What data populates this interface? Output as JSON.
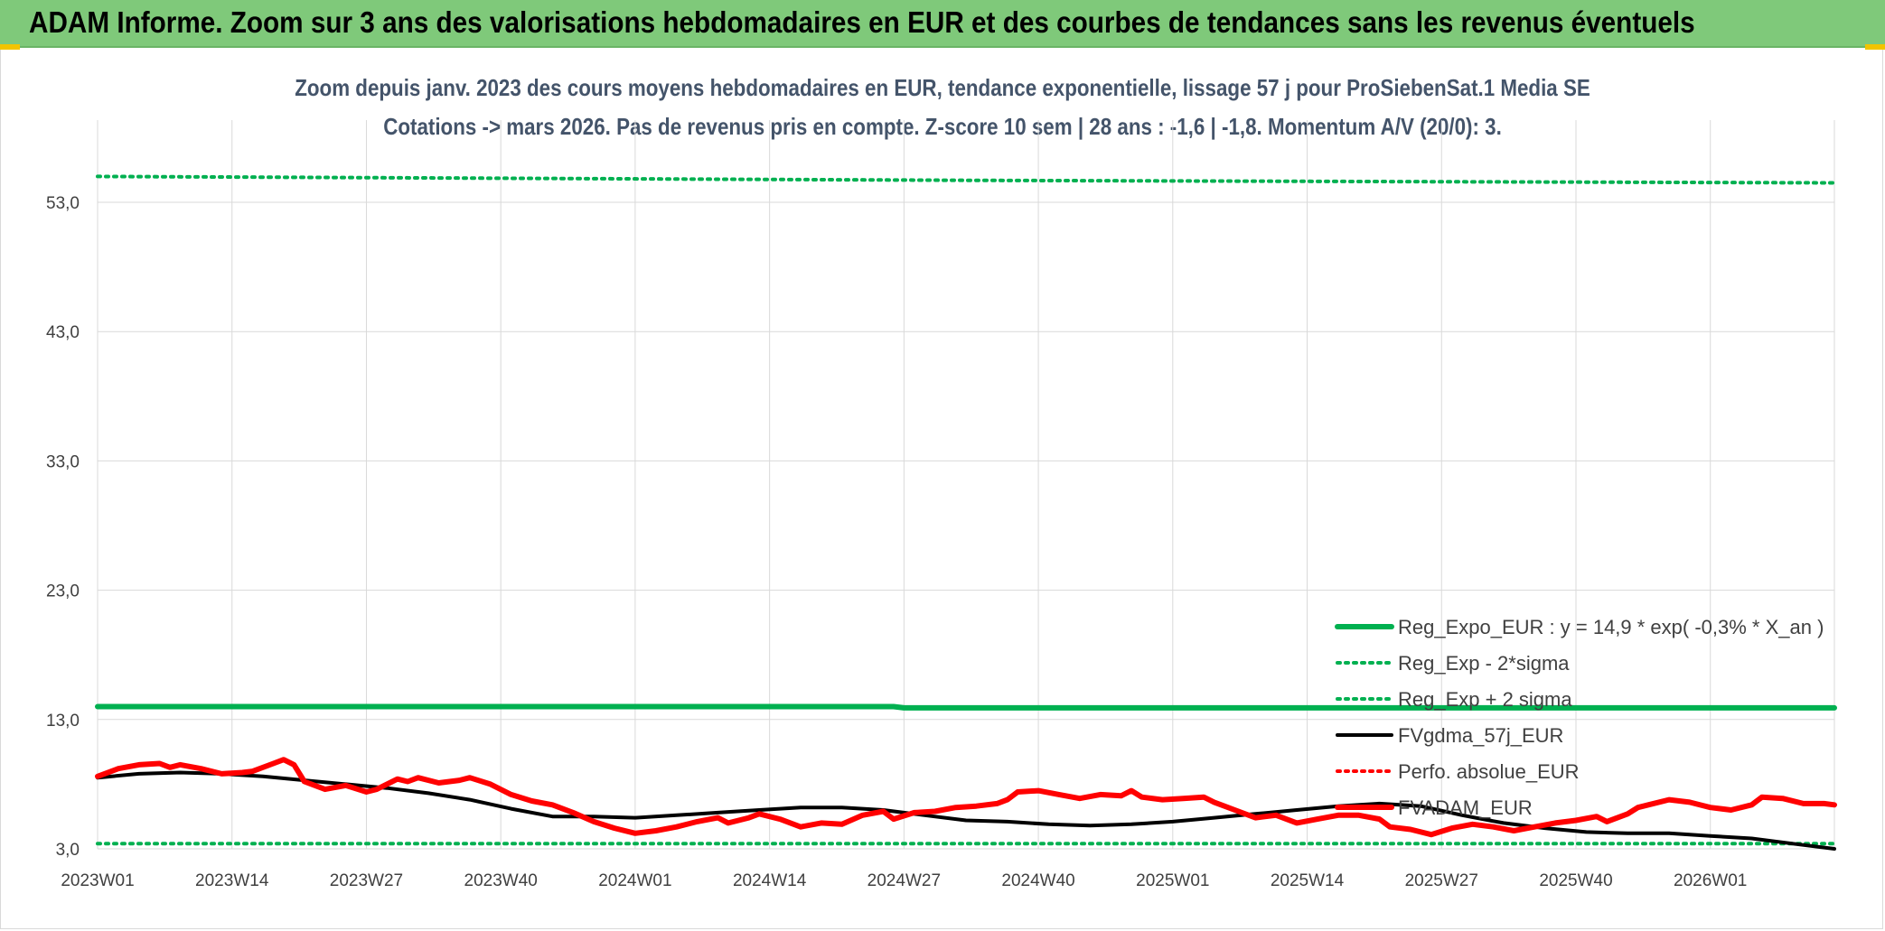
{
  "banner": {
    "title": "ADAM Informe. Zoom sur 3 ans des valorisations hebdomadaires en EUR et des courbes de tendances sans les revenus éventuels"
  },
  "chart_data": {
    "type": "line",
    "title": "Zoom depuis janv. 2023 des cours moyens hebdomadaires en EUR, tendance exponentielle, lissage 57 j pour ProSiebenSat.1 Media SE",
    "subtitle": "Cotations -> mars 2026. Pas de revenus pris en compte. Z-score 10 sem | 28 ans : -1,6 | -1,8. Momentum A/V (20/0): 3.",
    "grid": true,
    "legend_position": "bottom-right",
    "ylim": [
      3.0,
      58.0
    ],
    "y_ticks": [
      "3,0",
      "13,0",
      "23,0",
      "33,0",
      "43,0",
      "53,0"
    ],
    "x_ticks": [
      "2023W01",
      "2023W14",
      "2023W27",
      "2023W40",
      "2024W01",
      "2024W14",
      "2024W27",
      "2024W40",
      "2025W01",
      "2025W14",
      "2025W27",
      "2025W40",
      "2026W01"
    ],
    "x_week_range": [
      0,
      168
    ],
    "series": [
      {
        "name": "Reg_Expo_EUR : y = 14,9 * exp( -0,3% *  X_an )",
        "color": "#00b050",
        "style": "solid-thick",
        "points": [
          [
            0,
            14.0
          ],
          [
            77,
            14.0
          ],
          [
            78,
            13.9
          ],
          [
            168,
            13.9
          ]
        ]
      },
      {
        "name": "Reg_Exp - 2*sigma",
        "color": "#00b050",
        "style": "dotted",
        "points": [
          [
            0,
            3.4
          ],
          [
            168,
            3.4
          ]
        ]
      },
      {
        "name": "Reg_Exp + 2 sigma",
        "color": "#00b050",
        "style": "dotted",
        "points": [
          [
            0,
            55.0
          ],
          [
            84,
            54.7
          ],
          [
            168,
            54.5
          ]
        ]
      },
      {
        "name": "FVgdma_57j_EUR",
        "color": "#000000",
        "style": "solid",
        "points": [
          [
            0,
            8.5
          ],
          [
            4,
            8.8
          ],
          [
            8,
            8.9
          ],
          [
            12,
            8.8
          ],
          [
            16,
            8.6
          ],
          [
            20,
            8.3
          ],
          [
            24,
            8.0
          ],
          [
            28,
            7.7
          ],
          [
            32,
            7.3
          ],
          [
            36,
            6.8
          ],
          [
            40,
            6.1
          ],
          [
            44,
            5.5
          ],
          [
            48,
            5.5
          ],
          [
            52,
            5.4
          ],
          [
            56,
            5.6
          ],
          [
            60,
            5.8
          ],
          [
            64,
            6.0
          ],
          [
            68,
            6.2
          ],
          [
            72,
            6.2
          ],
          [
            76,
            6.0
          ],
          [
            80,
            5.6
          ],
          [
            84,
            5.2
          ],
          [
            88,
            5.1
          ],
          [
            92,
            4.9
          ],
          [
            96,
            4.8
          ],
          [
            100,
            4.9
          ],
          [
            104,
            5.1
          ],
          [
            108,
            5.4
          ],
          [
            112,
            5.7
          ],
          [
            116,
            6.0
          ],
          [
            120,
            6.3
          ],
          [
            124,
            6.5
          ],
          [
            128,
            6.3
          ],
          [
            132,
            5.6
          ],
          [
            136,
            5.0
          ],
          [
            140,
            4.6
          ],
          [
            144,
            4.3
          ],
          [
            148,
            4.2
          ],
          [
            152,
            4.2
          ],
          [
            156,
            4.0
          ],
          [
            160,
            3.8
          ],
          [
            164,
            3.4
          ],
          [
            168,
            3.0
          ]
        ]
      },
      {
        "name": "Perfo. absolue_EUR",
        "color": "#ff0000",
        "style": "dotted",
        "points": []
      },
      {
        "name": "FVADAM_EUR",
        "color": "#ff0000",
        "style": "solid-thick",
        "points": [
          [
            0,
            8.6
          ],
          [
            2,
            9.2
          ],
          [
            4,
            9.5
          ],
          [
            6,
            9.6
          ],
          [
            7,
            9.3
          ],
          [
            8,
            9.5
          ],
          [
            10,
            9.2
          ],
          [
            12,
            8.8
          ],
          [
            14,
            8.9
          ],
          [
            15,
            9.0
          ],
          [
            17,
            9.6
          ],
          [
            18,
            9.9
          ],
          [
            19,
            9.5
          ],
          [
            20,
            8.2
          ],
          [
            22,
            7.6
          ],
          [
            24,
            7.9
          ],
          [
            26,
            7.4
          ],
          [
            27,
            7.6
          ],
          [
            29,
            8.4
          ],
          [
            30,
            8.2
          ],
          [
            31,
            8.5
          ],
          [
            33,
            8.1
          ],
          [
            35,
            8.3
          ],
          [
            36,
            8.5
          ],
          [
            38,
            8.0
          ],
          [
            40,
            7.2
          ],
          [
            42,
            6.7
          ],
          [
            44,
            6.4
          ],
          [
            46,
            5.8
          ],
          [
            48,
            5.1
          ],
          [
            50,
            4.6
          ],
          [
            52,
            4.2
          ],
          [
            54,
            4.4
          ],
          [
            56,
            4.7
          ],
          [
            58,
            5.1
          ],
          [
            60,
            5.4
          ],
          [
            61,
            5.0
          ],
          [
            63,
            5.4
          ],
          [
            64,
            5.7
          ],
          [
            66,
            5.3
          ],
          [
            68,
            4.7
          ],
          [
            70,
            5.0
          ],
          [
            72,
            4.9
          ],
          [
            74,
            5.6
          ],
          [
            76,
            5.9
          ],
          [
            77,
            5.3
          ],
          [
            79,
            5.8
          ],
          [
            81,
            5.9
          ],
          [
            83,
            6.2
          ],
          [
            85,
            6.3
          ],
          [
            87,
            6.5
          ],
          [
            88,
            6.8
          ],
          [
            89,
            7.4
          ],
          [
            91,
            7.5
          ],
          [
            93,
            7.2
          ],
          [
            95,
            6.9
          ],
          [
            97,
            7.2
          ],
          [
            99,
            7.1
          ],
          [
            100,
            7.5
          ],
          [
            101,
            7.0
          ],
          [
            103,
            6.8
          ],
          [
            105,
            6.9
          ],
          [
            107,
            7.0
          ],
          [
            108,
            6.6
          ],
          [
            110,
            6.0
          ],
          [
            112,
            5.4
          ],
          [
            114,
            5.6
          ],
          [
            116,
            5.0
          ],
          [
            118,
            5.3
          ],
          [
            120,
            5.6
          ],
          [
            122,
            5.6
          ],
          [
            124,
            5.3
          ],
          [
            125,
            4.7
          ],
          [
            127,
            4.5
          ],
          [
            129,
            4.1
          ],
          [
            131,
            4.6
          ],
          [
            133,
            4.9
          ],
          [
            135,
            4.7
          ],
          [
            137,
            4.4
          ],
          [
            139,
            4.7
          ],
          [
            141,
            5.0
          ],
          [
            143,
            5.2
          ],
          [
            145,
            5.5
          ],
          [
            146,
            5.1
          ],
          [
            148,
            5.7
          ],
          [
            149,
            6.2
          ],
          [
            150,
            6.4
          ],
          [
            152,
            6.8
          ],
          [
            154,
            6.6
          ],
          [
            156,
            6.2
          ],
          [
            158,
            6.0
          ],
          [
            160,
            6.4
          ],
          [
            161,
            7.0
          ],
          [
            163,
            6.9
          ],
          [
            165,
            6.5
          ],
          [
            167,
            6.5
          ],
          [
            168,
            6.4
          ]
        ]
      }
    ]
  }
}
